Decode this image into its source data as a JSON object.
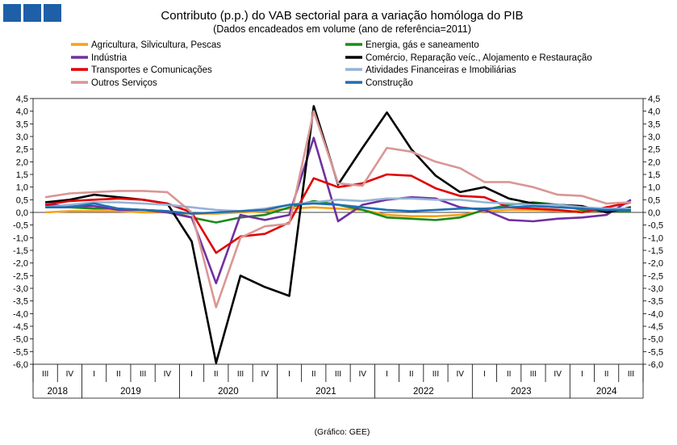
{
  "chart_data": {
    "type": "line",
    "title": "Contributo (p.p.) do VAB sectorial para a variação homóloga do PIB",
    "subtitle": "(Dados encadeados em volume  (ano de referência=2011)",
    "source": "(Gráfico: GEE)",
    "categories": [
      "III",
      "IV",
      "I",
      "II",
      "III",
      "IV",
      "I",
      "II",
      "III",
      "IV",
      "I",
      "II",
      "III",
      "IV",
      "I",
      "II",
      "III",
      "IV",
      "I",
      "II",
      "III",
      "IV",
      "I",
      "II",
      "III"
    ],
    "years": [
      {
        "label": "2018",
        "start": 0,
        "end": 1
      },
      {
        "label": "2019",
        "start": 2,
        "end": 5
      },
      {
        "label": "2020",
        "start": 6,
        "end": 9
      },
      {
        "label": "2021",
        "start": 10,
        "end": 13
      },
      {
        "label": "2022",
        "start": 14,
        "end": 17
      },
      {
        "label": "2023",
        "start": 18,
        "end": 21
      },
      {
        "label": "2024",
        "start": 22,
        "end": 24
      }
    ],
    "ylim": [
      -6.0,
      4.5
    ],
    "ystep": 0.5,
    "yticks": [
      "4,5",
      "4,0",
      "3,5",
      "3,0",
      "2,5",
      "2,0",
      "1,5",
      "1,0",
      "0,5",
      "0,0",
      "-0,5",
      "-1,0",
      "-1,5",
      "-2,0",
      "-2,5",
      "-3,0",
      "-3,5",
      "-4,0",
      "-4,5",
      "-5,0",
      "-5,5",
      "-6,0"
    ],
    "series": [
      {
        "name": "Agricultura, Silvicultura, Pescas",
        "color": "#F7A11A",
        "values": [
          0.0,
          0.05,
          0.05,
          0.05,
          0.0,
          0.0,
          -0.05,
          -0.05,
          0.0,
          0.05,
          0.15,
          0.2,
          0.15,
          0.1,
          -0.1,
          -0.15,
          -0.15,
          -0.1,
          0.05,
          0.1,
          0.1,
          0.05,
          0.05,
          0.05,
          0.05
        ]
      },
      {
        "name": "Energia, gás e saneamento",
        "color": "#1C8A1C",
        "values": [
          0.2,
          0.2,
          0.15,
          0.15,
          0.1,
          0.05,
          -0.2,
          -0.4,
          -0.2,
          -0.1,
          0.2,
          0.45,
          0.3,
          0.1,
          -0.2,
          -0.25,
          -0.3,
          -0.2,
          0.1,
          0.3,
          0.4,
          0.3,
          0.1,
          0.05,
          0.05
        ]
      },
      {
        "name": "Indústria",
        "color": "#7030A0",
        "values": [
          0.3,
          0.25,
          0.25,
          0.1,
          0.1,
          0.0,
          -0.2,
          -2.8,
          -0.1,
          -0.3,
          -0.1,
          2.95,
          -0.35,
          0.3,
          0.5,
          0.6,
          0.55,
          0.2,
          0.1,
          -0.3,
          -0.35,
          -0.25,
          -0.2,
          -0.1,
          0.5
        ]
      },
      {
        "name": "Comércio, Reparação veíc., Alojamento e Restauração",
        "color": "#000000",
        "values": [
          0.4,
          0.5,
          0.7,
          0.6,
          0.5,
          0.35,
          -1.15,
          -5.95,
          -2.5,
          -2.95,
          -3.3,
          4.2,
          1.1,
          2.55,
          3.95,
          2.5,
          1.45,
          0.8,
          1.0,
          0.55,
          0.35,
          0.3,
          0.25,
          0.0,
          0.2
        ]
      },
      {
        "name": "Transportes e Comunicações",
        "color": "#E00000",
        "values": [
          0.3,
          0.45,
          0.5,
          0.55,
          0.5,
          0.35,
          0.0,
          -1.6,
          -0.95,
          -0.85,
          -0.4,
          1.35,
          1.0,
          1.15,
          1.5,
          1.45,
          0.95,
          0.65,
          0.6,
          0.2,
          0.15,
          0.1,
          0.0,
          0.2,
          0.4
        ]
      },
      {
        "name": "Atividades Financeiras e Imobiliárias",
        "color": "#95B3D7",
        "values": [
          0.2,
          0.3,
          0.4,
          0.4,
          0.35,
          0.3,
          0.2,
          0.1,
          0.05,
          0.15,
          0.3,
          0.4,
          0.5,
          0.45,
          0.55,
          0.55,
          0.5,
          0.5,
          0.4,
          0.35,
          0.3,
          0.3,
          0.2,
          0.15,
          0.15
        ]
      },
      {
        "name": "Outros Serviços",
        "color": "#D99694",
        "values": [
          0.6,
          0.75,
          0.8,
          0.85,
          0.85,
          0.8,
          0.0,
          -3.75,
          -1.0,
          -0.55,
          -0.45,
          4.0,
          1.15,
          1.05,
          2.55,
          2.4,
          2.0,
          1.75,
          1.2,
          1.2,
          1.0,
          0.7,
          0.65,
          0.35,
          0.4
        ]
      },
      {
        "name": "Construção",
        "color": "#1F6FB5",
        "values": [
          0.2,
          0.2,
          0.35,
          0.15,
          0.1,
          0.05,
          -0.05,
          0.0,
          0.05,
          0.1,
          0.3,
          0.35,
          0.3,
          0.2,
          0.1,
          0.05,
          0.1,
          0.15,
          0.15,
          0.2,
          0.25,
          0.2,
          0.15,
          0.1,
          0.1
        ]
      }
    ]
  }
}
